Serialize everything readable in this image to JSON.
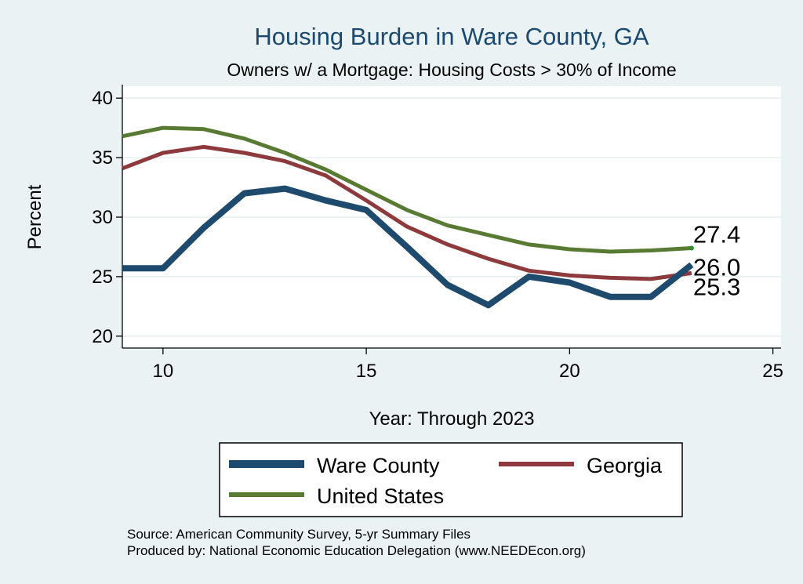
{
  "chart_data": {
    "type": "line",
    "title": "Housing Burden in Ware County, GA",
    "subtitle": "Owners w/ a Mortgage: Housing Costs > 30% of Income",
    "xlabel": "Year: Through 2023",
    "ylabel": "Percent",
    "xlim": [
      9,
      25.2
    ],
    "ylim": [
      19,
      41
    ],
    "xticks": [
      10,
      15,
      20,
      25
    ],
    "yticks": [
      20,
      25,
      30,
      35,
      40
    ],
    "grid": true,
    "x": [
      9,
      10,
      11,
      12,
      13,
      14,
      15,
      16,
      17,
      18,
      19,
      20,
      21,
      22,
      23
    ],
    "series": [
      {
        "name": "Ware County",
        "color": "#1e4a6e",
        "values": [
          25.7,
          25.7,
          29.1,
          32.0,
          32.4,
          31.4,
          30.6,
          27.5,
          24.3,
          22.6,
          25.0,
          24.5,
          23.3,
          23.3,
          26.0
        ],
        "end_label": "26.0"
      },
      {
        "name": "Georgia",
        "color": "#8e3a3d",
        "values": [
          34.1,
          35.4,
          35.9,
          35.4,
          34.7,
          33.5,
          31.4,
          29.2,
          27.7,
          26.5,
          25.5,
          25.1,
          24.9,
          24.8,
          25.3
        ],
        "end_label": "25.3"
      },
      {
        "name": "United States",
        "color": "#587a32",
        "values": [
          36.8,
          37.5,
          37.4,
          36.6,
          35.4,
          34.0,
          32.3,
          30.6,
          29.3,
          28.5,
          27.7,
          27.3,
          27.1,
          27.2,
          27.4
        ],
        "end_label": "27.4"
      }
    ],
    "legend": {
      "placement": "bottom",
      "entries": [
        "Ware County",
        "Georgia",
        "United States"
      ]
    },
    "notes": [
      "Source: American Community Survey, 5-yr Summary Files",
      "Produced by: National Economic Education Delegation (www.NEEDEcon.org)"
    ]
  }
}
